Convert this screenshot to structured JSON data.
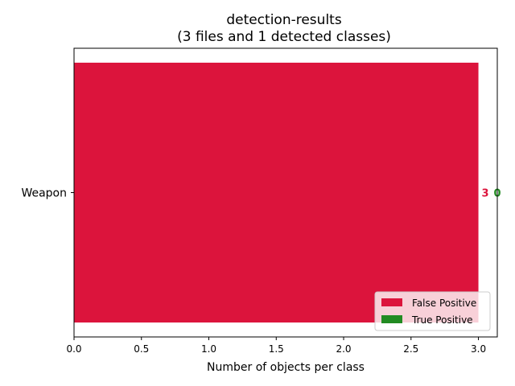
{
  "chart_data": {
    "type": "bar",
    "orientation": "horizontal",
    "title": "detection-results",
    "subtitle": "(3 files and 1 detected classes)",
    "xlabel": "Number of objects per class",
    "ylabel": "",
    "xlim": [
      0,
      3.14
    ],
    "xticks": [
      "0.0",
      "0.5",
      "1.0",
      "1.5",
      "2.0",
      "2.5",
      "3.0"
    ],
    "grid": false,
    "legend_position": "lower-right",
    "categories": [
      "Weapon"
    ],
    "series": [
      {
        "name": "False Positive",
        "color": "#dc143c",
        "values": [
          3
        ]
      },
      {
        "name": "True Positive",
        "color": "#228b22",
        "values": [
          0
        ]
      }
    ],
    "data_labels": [
      {
        "text": "3",
        "color": "#dc143c"
      },
      {
        "text": "0",
        "color": "#228b22"
      }
    ]
  }
}
